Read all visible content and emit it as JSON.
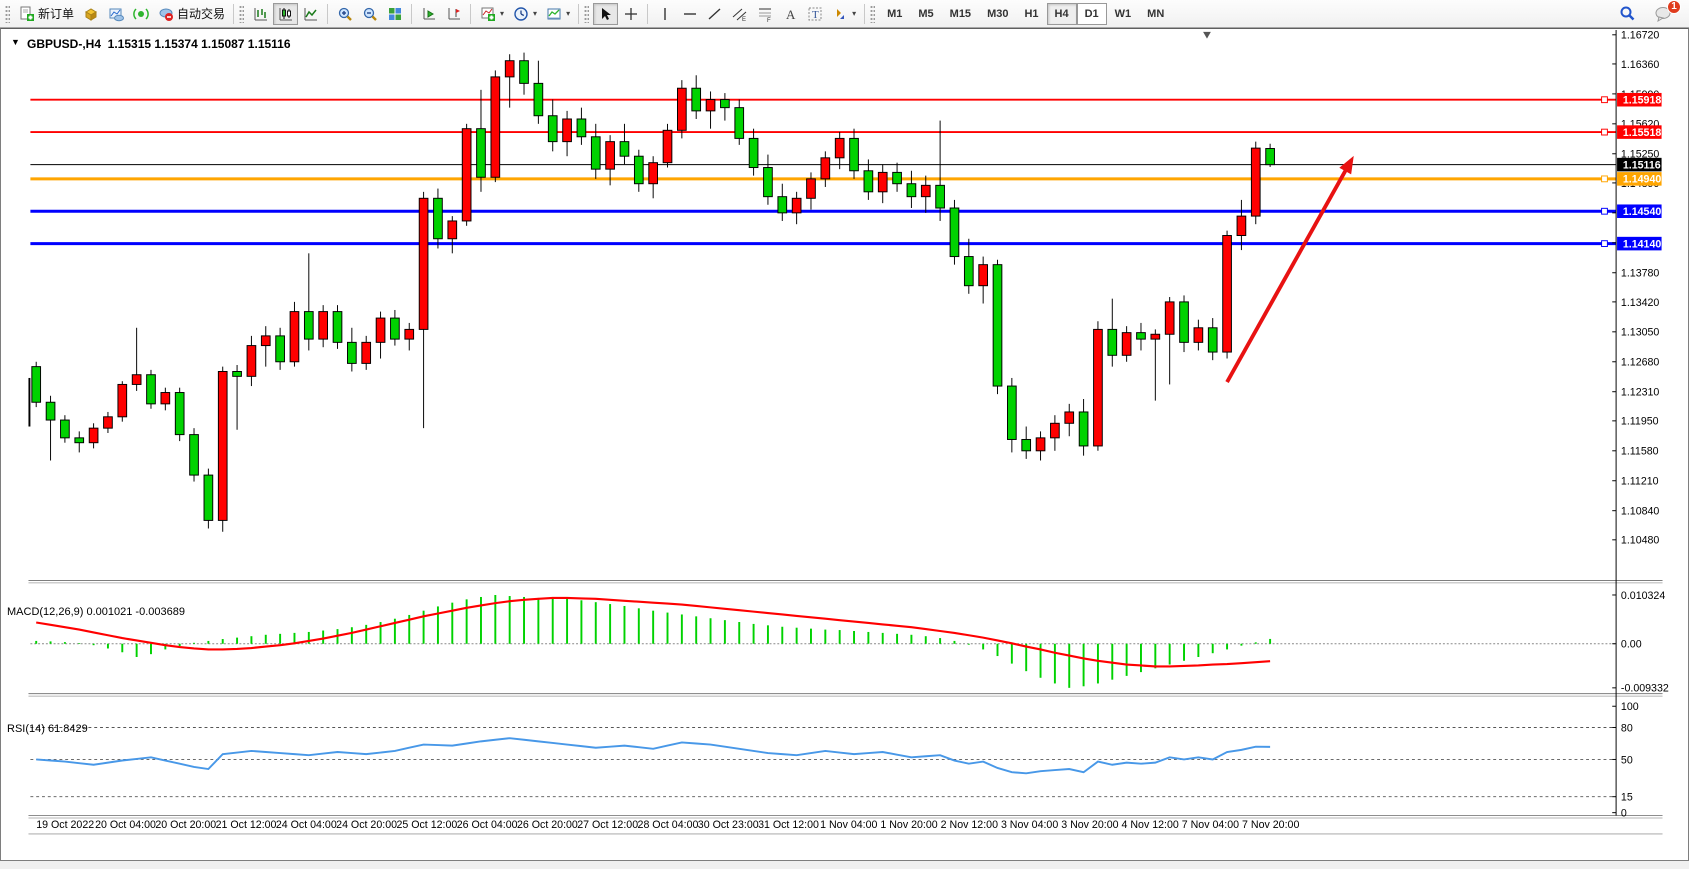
{
  "toolbar": {
    "sections": [
      {
        "buttons": [
          {
            "name": "new-order-button",
            "icon": "new-order-icon",
            "label": "新订单"
          },
          {
            "name": "market-watch-button",
            "icon": "quotes-icon"
          },
          {
            "name": "chart-profile-button",
            "icon": "chart-cloud-icon"
          },
          {
            "name": "signals-button",
            "icon": "signal-icon"
          },
          {
            "name": "auto-trading-button",
            "icon": "autotrade-icon",
            "label": "自动交易"
          }
        ]
      },
      {
        "buttons": [
          {
            "name": "bar-chart-button",
            "icon": "bars-icon"
          },
          {
            "name": "candlestick-chart-button",
            "icon": "candles-icon",
            "active": true
          },
          {
            "name": "line-chart-button",
            "icon": "linechart-icon"
          },
          {
            "sep": true
          },
          {
            "name": "zoom-in-button",
            "icon": "zoom-in-icon"
          },
          {
            "name": "zoom-out-button",
            "icon": "zoom-out-icon"
          },
          {
            "name": "tile-windows-button",
            "icon": "tile-icon"
          },
          {
            "sep": true
          },
          {
            "name": "auto-scroll-button",
            "icon": "autoscroll-icon"
          },
          {
            "name": "chart-shift-button",
            "icon": "chartshift-icon"
          },
          {
            "sep": true
          },
          {
            "name": "indicators-button",
            "icon": "indicators-icon",
            "dropdown": true
          },
          {
            "name": "periods-button",
            "icon": "clock-icon",
            "dropdown": true
          },
          {
            "name": "templates-button",
            "icon": "template-icon",
            "dropdown": true
          }
        ]
      },
      {
        "buttons": [
          {
            "name": "cursor-button",
            "icon": "cursor-icon",
            "active": true
          },
          {
            "name": "crosshair-button",
            "icon": "crosshair-icon"
          },
          {
            "sep": true
          },
          {
            "name": "vertical-line-button",
            "icon": "vline-icon"
          },
          {
            "name": "horizontal-line-button",
            "icon": "hline-icon"
          },
          {
            "name": "trendline-button",
            "icon": "trendline-icon"
          },
          {
            "name": "equidistant-channel-button",
            "icon": "channel-icon"
          },
          {
            "name": "fibonacci-button",
            "icon": "fibonacci-icon"
          },
          {
            "name": "text-button",
            "icon": "text-a-icon"
          },
          {
            "name": "text-label-button",
            "icon": "text-t-icon"
          },
          {
            "name": "arrows-button",
            "icon": "shapes-icon",
            "dropdown": true
          }
        ]
      }
    ],
    "timeframes": [
      "M1",
      "M5",
      "M15",
      "M30",
      "H1",
      "H4",
      "D1",
      "W1",
      "MN"
    ],
    "active_timeframe": "H4",
    "raised_timeframe": "D1",
    "search_button": {
      "name": "search-button"
    },
    "notifications": {
      "badge": "1"
    }
  },
  "chart_window": {
    "title_caret": "▼",
    "title": "GBPUSD-,H4  1.15315 1.15374 1.15087 1.15116",
    "macd_label": "MACD(12,26,9) 0.001021 -0.003689",
    "rsi_label": "RSI(14) 61.8429"
  },
  "chart_data": [
    {
      "type": "candlestick",
      "title": "GBPUSD-,H4",
      "symbol": "GBPUSD-",
      "timeframe": "H4",
      "last_ohlc": {
        "open": 1.15315,
        "high": 1.15374,
        "low": 1.15087,
        "close": 1.15116
      },
      "ylim": [
        1.1048,
        1.1672
      ],
      "y_axis_ticks": [
        1.1672,
        1.1636,
        1.1599,
        1.1562,
        1.1525,
        1.1489,
        1.1452,
        1.1415,
        1.1378,
        1.1342,
        1.1305,
        1.1268,
        1.1231,
        1.1195,
        1.1158,
        1.1121,
        1.1084,
        1.1048
      ],
      "x_labels": [
        "19 Oct 2022",
        "20 Oct 04:00",
        "20 Oct 20:00",
        "21 Oct 12:00",
        "24 Oct 04:00",
        "24 Oct 20:00",
        "25 Oct 12:00",
        "26 Oct 04:00",
        "26 Oct 20:00",
        "27 Oct 12:00",
        "28 Oct 04:00",
        "30 Oct 23:00",
        "31 Oct 12:00",
        "1 Nov 04:00",
        "1 Nov 20:00",
        "2 Nov 12:00",
        "3 Nov 04:00",
        "3 Nov 20:00",
        "4 Nov 12:00",
        "7 Nov 04:00",
        "7 Nov 20:00"
      ],
      "bull_color": "#FF0000",
      "bear_color": "#00D200",
      "candles": [
        [
          1.1262,
          1.1268,
          1.1212,
          1.1218
        ],
        [
          1.1218,
          1.1226,
          1.1146,
          1.1196
        ],
        [
          1.1196,
          1.1202,
          1.1168,
          1.1174
        ],
        [
          1.1174,
          1.1182,
          1.1156,
          1.1168
        ],
        [
          1.1168,
          1.1192,
          1.1161,
          1.1186
        ],
        [
          1.1186,
          1.1206,
          1.118,
          1.12
        ],
        [
          1.12,
          1.1244,
          1.1194,
          1.124
        ],
        [
          1.124,
          1.131,
          1.1232,
          1.1252
        ],
        [
          1.1252,
          1.1258,
          1.121,
          1.1216
        ],
        [
          1.1216,
          1.1236,
          1.1208,
          1.123
        ],
        [
          1.123,
          1.1236,
          1.117,
          1.1178
        ],
        [
          1.1178,
          1.1186,
          1.112,
          1.1128
        ],
        [
          1.1128,
          1.1136,
          1.1062,
          1.1072
        ],
        [
          1.1072,
          1.1262,
          1.1058,
          1.1256
        ],
        [
          1.1256,
          1.1264,
          1.1184,
          1.125
        ],
        [
          1.125,
          1.13,
          1.1238,
          1.1288
        ],
        [
          1.1288,
          1.1312,
          1.1262,
          1.13
        ],
        [
          1.13,
          1.131,
          1.1258,
          1.1268
        ],
        [
          1.1268,
          1.1342,
          1.1262,
          1.133
        ],
        [
          1.133,
          1.1402,
          1.1282,
          1.1296
        ],
        [
          1.1296,
          1.1338,
          1.1286,
          1.133
        ],
        [
          1.133,
          1.1338,
          1.1284,
          1.1292
        ],
        [
          1.1292,
          1.131,
          1.1256,
          1.1266
        ],
        [
          1.1266,
          1.13,
          1.1258,
          1.1292
        ],
        [
          1.1292,
          1.133,
          1.1272,
          1.1322
        ],
        [
          1.1322,
          1.1332,
          1.1288,
          1.1296
        ],
        [
          1.1296,
          1.1316,
          1.1282,
          1.1308
        ],
        [
          1.1308,
          1.1478,
          1.1186,
          1.147
        ],
        [
          1.147,
          1.1482,
          1.1408,
          1.142
        ],
        [
          1.142,
          1.1448,
          1.1402,
          1.1442
        ],
        [
          1.1442,
          1.1562,
          1.1436,
          1.1556
        ],
        [
          1.1556,
          1.1604,
          1.1478,
          1.1496
        ],
        [
          1.1496,
          1.1628,
          1.149,
          1.162
        ],
        [
          1.162,
          1.1648,
          1.1582,
          1.164
        ],
        [
          1.164,
          1.165,
          1.1598,
          1.1612
        ],
        [
          1.1612,
          1.164,
          1.1562,
          1.1572
        ],
        [
          1.1572,
          1.1592,
          1.1528,
          1.154
        ],
        [
          1.154,
          1.1578,
          1.1522,
          1.1568
        ],
        [
          1.1568,
          1.1582,
          1.1536,
          1.1546
        ],
        [
          1.1546,
          1.1562,
          1.1494,
          1.1506
        ],
        [
          1.1506,
          1.1548,
          1.1486,
          1.154
        ],
        [
          1.154,
          1.1562,
          1.1512,
          1.1522
        ],
        [
          1.1522,
          1.153,
          1.1478,
          1.1488
        ],
        [
          1.1488,
          1.1522,
          1.147,
          1.1514
        ],
        [
          1.1514,
          1.1562,
          1.1508,
          1.1554
        ],
        [
          1.1554,
          1.1616,
          1.1544,
          1.1606
        ],
        [
          1.1606,
          1.1622,
          1.1568,
          1.1578
        ],
        [
          1.1578,
          1.1602,
          1.1556,
          1.1592
        ],
        [
          1.1592,
          1.16,
          1.1566,
          1.1582
        ],
        [
          1.1582,
          1.1592,
          1.1536,
          1.1544
        ],
        [
          1.1544,
          1.1556,
          1.1498,
          1.1508
        ],
        [
          1.1508,
          1.1524,
          1.1462,
          1.1472
        ],
        [
          1.1472,
          1.1488,
          1.1442,
          1.1452
        ],
        [
          1.1452,
          1.1478,
          1.1438,
          1.147
        ],
        [
          1.147,
          1.1502,
          1.1456,
          1.1494
        ],
        [
          1.1494,
          1.1528,
          1.1484,
          1.152
        ],
        [
          1.152,
          1.1552,
          1.1506,
          1.1544
        ],
        [
          1.1544,
          1.1556,
          1.1494,
          1.1504
        ],
        [
          1.1504,
          1.1518,
          1.1468,
          1.1478
        ],
        [
          1.1478,
          1.1512,
          1.1464,
          1.1502
        ],
        [
          1.1502,
          1.1514,
          1.1478,
          1.1488
        ],
        [
          1.1488,
          1.1504,
          1.1458,
          1.1472
        ],
        [
          1.1472,
          1.1498,
          1.1452,
          1.1486
        ],
        [
          1.1486,
          1.1566,
          1.1442,
          1.1458
        ],
        [
          1.1458,
          1.1468,
          1.1388,
          1.1398
        ],
        [
          1.1398,
          1.142,
          1.1352,
          1.1362
        ],
        [
          1.1362,
          1.1398,
          1.134,
          1.1388
        ],
        [
          1.1388,
          1.1394,
          1.1228,
          1.1238
        ],
        [
          1.1238,
          1.1248,
          1.1156,
          1.1172
        ],
        [
          1.1172,
          1.1188,
          1.1148,
          1.1158
        ],
        [
          1.1158,
          1.1182,
          1.1146,
          1.1174
        ],
        [
          1.1174,
          1.1202,
          1.1158,
          1.1192
        ],
        [
          1.1192,
          1.1216,
          1.1176,
          1.1206
        ],
        [
          1.1206,
          1.1222,
          1.1152,
          1.1164
        ],
        [
          1.1164,
          1.1318,
          1.1158,
          1.1308
        ],
        [
          1.1308,
          1.1346,
          1.1262,
          1.1276
        ],
        [
          1.1276,
          1.1312,
          1.1268,
          1.1304
        ],
        [
          1.1304,
          1.1316,
          1.1282,
          1.1296
        ],
        [
          1.1296,
          1.1308,
          1.122,
          1.1302
        ],
        [
          1.1302,
          1.1348,
          1.124,
          1.1342
        ],
        [
          1.1342,
          1.135,
          1.128,
          1.1292
        ],
        [
          1.1292,
          1.132,
          1.1282,
          1.131
        ],
        [
          1.131,
          1.1322,
          1.127,
          1.128
        ],
        [
          1.128,
          1.143,
          1.1272,
          1.1424
        ],
        [
          1.1424,
          1.1468,
          1.1406,
          1.1448
        ],
        [
          1.1448,
          1.154,
          1.1438,
          1.1532
        ],
        [
          1.15315,
          1.15374,
          1.15087,
          1.15116
        ]
      ],
      "hlines": [
        {
          "label": "1.15918",
          "price": 1.15918,
          "color": "#FF0000",
          "width": 2,
          "handle": true
        },
        {
          "label": "1.15518",
          "price": 1.15518,
          "color": "#FF0000",
          "width": 2,
          "handle": true
        },
        {
          "label": "1.15116",
          "price": 1.15116,
          "color": "#000000",
          "width": 1,
          "handle": false,
          "current_price": true
        },
        {
          "label": "1.14940",
          "price": 1.1494,
          "color": "#FFA500",
          "width": 3,
          "handle": true
        },
        {
          "label": "1.14540",
          "price": 1.1454,
          "color": "#0000FF",
          "width": 3,
          "handle": true
        },
        {
          "label": "1.14140",
          "price": 1.1414,
          "color": "#0000FF",
          "width": 3,
          "handle": true
        }
      ],
      "annotation_arrow": {
        "from_index": 83.0,
        "from_price": 1.1243,
        "to_index": 91.5,
        "to_price": 1.1512,
        "color": "#E81212"
      },
      "shift_marker_index": 81.6,
      "legend_position": "none",
      "grid": false
    },
    {
      "type": "bar",
      "title": "MACD(12,26,9)",
      "current_values": {
        "macd": "0.001021",
        "signal": "-0.003689"
      },
      "ylim": [
        -0.009332,
        0.010324
      ],
      "y_axis_ticks": [
        "0.010324",
        "0.00",
        "-0.009332"
      ],
      "histogram_color": "#00D200",
      "signal_color": "#FF0000",
      "value_unit": 0.001,
      "histogram": [
        0.6,
        0.5,
        0.35,
        0.15,
        -0.3,
        -1.0,
        -1.8,
        -2.8,
        -2.2,
        -1.2,
        -0.5,
        0.2,
        0.6,
        1.0,
        1.3,
        1.6,
        1.9,
        2.1,
        2.3,
        2.5,
        2.8,
        3.1,
        3.5,
        4.0,
        4.6,
        5.3,
        6.1,
        7.0,
        7.9,
        8.7,
        9.4,
        9.9,
        10.32,
        10.1,
        9.9,
        9.7,
        9.9,
        9.6,
        9.2,
        8.8,
        8.4,
        8.0,
        7.5,
        7.0,
        6.6,
        6.2,
        5.8,
        5.4,
        5.0,
        4.6,
        4.2,
        3.9,
        3.6,
        3.4,
        3.2,
        3.0,
        2.9,
        2.7,
        2.5,
        2.3,
        2.1,
        1.9,
        1.6,
        1.2,
        0.6,
        -0.2,
        -1.2,
        -2.6,
        -4.2,
        -5.8,
        -7.2,
        -8.4,
        -9.33,
        -9.0,
        -8.4,
        -7.6,
        -6.8,
        -6.0,
        -5.2,
        -4.4,
        -3.6,
        -2.8,
        -2.0,
        -1.2,
        -0.4,
        0.3,
        1.021
      ],
      "signal": [
        4.5,
        4.0,
        3.5,
        3.0,
        2.4,
        1.8,
        1.2,
        0.7,
        0.2,
        -0.3,
        -0.7,
        -1.0,
        -1.2,
        -1.2,
        -1.1,
        -0.9,
        -0.6,
        -0.3,
        0.1,
        0.6,
        1.1,
        1.7,
        2.3,
        3.0,
        3.7,
        4.4,
        5.1,
        5.8,
        6.4,
        7.0,
        7.6,
        8.1,
        8.6,
        9.0,
        9.3,
        9.5,
        9.7,
        9.7,
        9.6,
        9.5,
        9.3,
        9.1,
        8.9,
        8.7,
        8.5,
        8.3,
        8.0,
        7.7,
        7.4,
        7.1,
        6.8,
        6.5,
        6.2,
        5.9,
        5.6,
        5.3,
        5.0,
        4.7,
        4.4,
        4.1,
        3.8,
        3.5,
        3.1,
        2.7,
        2.3,
        1.8,
        1.3,
        0.7,
        0.1,
        -0.6,
        -1.2,
        -1.9,
        -2.5,
        -3.1,
        -3.6,
        -4.0,
        -4.4,
        -4.6,
        -4.8,
        -4.8,
        -4.7,
        -4.6,
        -4.4,
        -4.3,
        -4.1,
        -3.9,
        -3.689
      ]
    },
    {
      "type": "line",
      "title": "RSI(14)",
      "current_value": "61.8429",
      "ylim": [
        0,
        100
      ],
      "y_axis_ticks": [
        "100",
        "80",
        "50",
        "15",
        "0"
      ],
      "levels": [
        80,
        50,
        15
      ],
      "line_color": "#4898E8",
      "values": [
        50,
        49,
        48,
        46.5,
        45,
        47,
        49,
        50.5,
        52,
        49,
        46,
        43,
        41,
        55,
        56.5,
        58,
        57,
        56,
        55,
        54,
        55.5,
        57,
        56,
        55,
        56.5,
        58,
        61,
        64,
        63.5,
        63,
        65,
        67,
        68.5,
        70,
        68.5,
        67,
        65.5,
        64,
        62.5,
        61,
        62,
        63,
        61.5,
        60,
        63,
        66,
        65,
        64,
        62,
        60,
        58,
        56,
        55,
        54,
        56,
        58,
        56.5,
        55,
        56,
        57,
        54.5,
        52,
        53,
        54,
        49,
        46,
        48,
        42,
        38,
        37,
        39,
        40,
        41,
        38,
        48,
        45,
        47,
        46,
        47,
        52,
        50,
        52,
        50,
        57,
        59,
        62,
        61.84
      ]
    }
  ]
}
